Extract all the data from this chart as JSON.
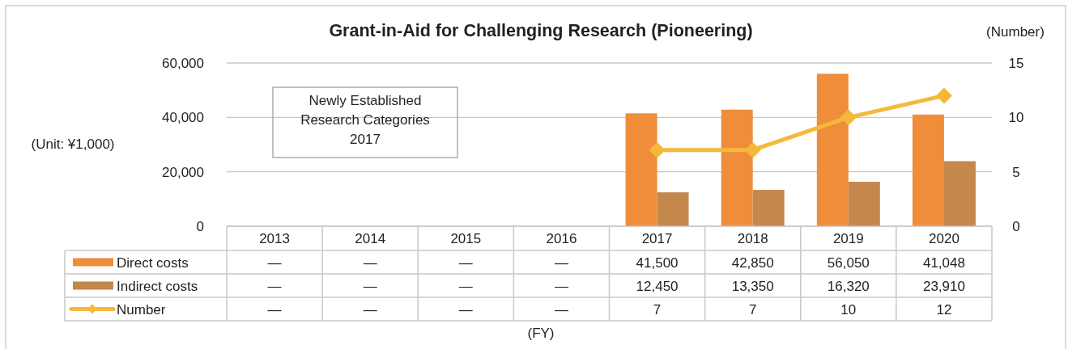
{
  "chart_data": {
    "type": "bar",
    "title": "Grant-in-Aid for Challenging Research (Pioneering)",
    "ylabel": "(Unit: ¥1,000)",
    "y2label": "(Number)",
    "categories": [
      "2013",
      "2014",
      "2015",
      "2016",
      "2017",
      "2018",
      "2019",
      "2020"
    ],
    "series": [
      {
        "name": "Direct costs",
        "color": "#f08d3a",
        "values": [
          null,
          null,
          null,
          null,
          41500,
          42850,
          56050,
          41048
        ],
        "value_labels": [
          "—",
          "—",
          "—",
          "—",
          "41,500",
          "42,850",
          "56,050",
          "41,048"
        ]
      },
      {
        "name": "Indirect costs",
        "color": "#c4884c",
        "values": [
          null,
          null,
          null,
          null,
          12450,
          13350,
          16320,
          23910
        ],
        "value_labels": [
          "—",
          "—",
          "—",
          "—",
          "12,450",
          "13,350",
          "16,320",
          "23,910"
        ]
      },
      {
        "name": "Number",
        "type": "line",
        "axis": "y2",
        "color": "#f4b93b",
        "marker": "diamond",
        "values": [
          null,
          null,
          null,
          null,
          7,
          7,
          10,
          12
        ],
        "value_labels": [
          "—",
          "—",
          "—",
          "—",
          "7",
          "7",
          "10",
          "12"
        ]
      }
    ],
    "ylim": [
      0,
      60000
    ],
    "yticks": [
      {
        "value": 0,
        "label": "0"
      },
      {
        "value": 20000,
        "label": "20,000"
      },
      {
        "value": 40000,
        "label": "40,000"
      },
      {
        "value": 60000,
        "label": "60,000"
      }
    ],
    "y2lim": [
      0,
      15
    ],
    "y2ticks": [
      0,
      5,
      10,
      15
    ],
    "grid": "y",
    "legend": "bottom",
    "annotations": [
      "Newly Established\nResearch Categories\n2017",
      "(FY)"
    ]
  }
}
